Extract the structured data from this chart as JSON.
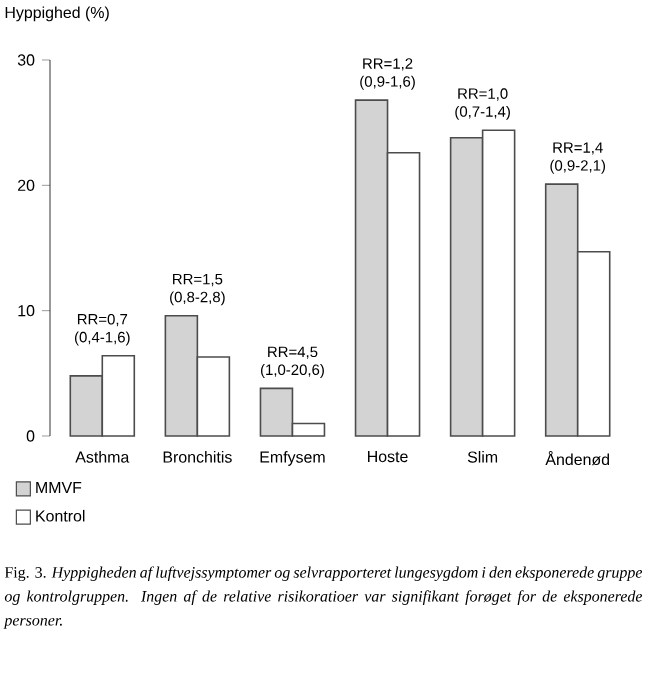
{
  "chart_data": {
    "type": "bar",
    "ylabel": "Hyppighed (%)",
    "categories": [
      "Asthma",
      "Bronchitis",
      "Emfysem",
      "Hoste",
      "Slim",
      "Åndenød"
    ],
    "series": [
      {
        "name": "MMVF",
        "color": "#d3d3d3",
        "values": [
          4.8,
          9.6,
          3.8,
          26.8,
          23.8,
          20.1
        ]
      },
      {
        "name": "Kontrol",
        "color": "#ffffff",
        "values": [
          6.4,
          6.3,
          1.0,
          22.6,
          24.4,
          14.7
        ]
      }
    ],
    "ylim": [
      0,
      30
    ],
    "yticks": [
      0,
      10,
      20,
      30
    ],
    "grid": false,
    "legend": "bottom left",
    "annotations": [
      {
        "text": "RR=0,7 (0,4-1,6)",
        "x": "Asthma",
        "y": 6.4
      },
      {
        "text": "RR=1,5 (0,8-2,8)",
        "x": "Bronchitis",
        "y": 9.6
      },
      {
        "text": "RR=4,5 (1,0-20,6)",
        "x": "Emfysem",
        "y": 3.8
      },
      {
        "text": "RR=1,2 (0,9-1,6)",
        "x": "Hoste",
        "y": 26.8
      },
      {
        "text": "RR=1,0 (0,7-1,4)",
        "x": "Slim",
        "y": 24.4
      },
      {
        "text": "RR=1,4 (0,9-2,1)",
        "x": "Åndenød",
        "y": 20.1
      },
      "Fig. 3. *Hyppigheden af luftvejssymptomer og selvrapporteret lungesygdom i den eksponerede gruppe og kontrolgruppen. Ingen af de relative risikoratioer var signifikant forøget for de eksponerede personer.*"
    ]
  }
}
